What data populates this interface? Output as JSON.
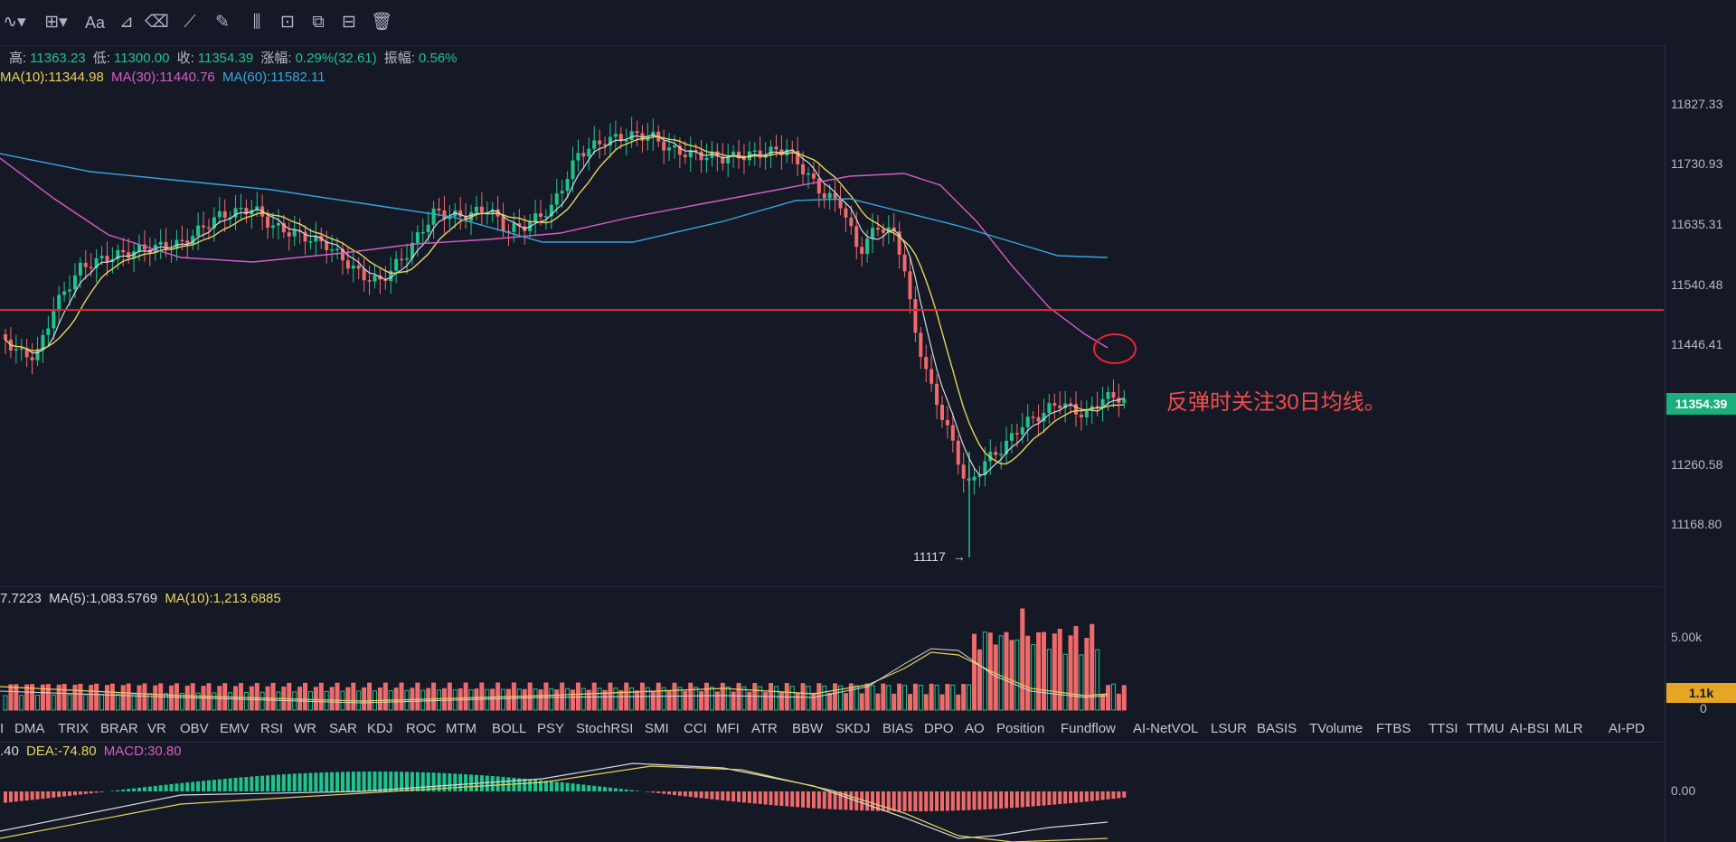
{
  "toolbar": {
    "icons": [
      "chart-style-icon",
      "crosshair-icon",
      "text-icon",
      "pattern-icon",
      "eraser-icon",
      "ruler-icon",
      "pencil-icon",
      "position-icon",
      "lock-icon",
      "copy-icon",
      "screenshot-icon",
      "trash-icon"
    ],
    "text_tool": "Aa"
  },
  "ohlc": {
    "high_label": "高:",
    "high": "11363.23",
    "low_label": "低:",
    "low": "11300.00",
    "close_label": "收:",
    "close": "11354.39",
    "change_label": "涨幅:",
    "change": "0.29%(32.61)",
    "amp_label": "振幅:",
    "amp": "0.56%"
  },
  "ma": {
    "ma10": "MA(10):11344.98",
    "ma30": "MA(30):11440.76",
    "ma60": "MA(60):11582.11"
  },
  "price_axis": [
    "11827.33",
    "11730.93",
    "11635.31",
    "11540.48",
    "11446.41",
    "11260.58",
    "11168.80"
  ],
  "current_price": "11354.39",
  "low_marker": "11117",
  "annotation": "反弹时关注30日均线。",
  "volume_info": {
    "first": "7.7223",
    "ma5": "MA(5):1,083.5769",
    "ma10": "MA(10):1,213.6885"
  },
  "volume_axis": {
    "top": "5.00k",
    "zero": "0",
    "current": "1.1k"
  },
  "indicator_tabs": [
    "I",
    "DMA",
    "TRIX",
    "BRAR",
    "VR",
    "OBV",
    "EMV",
    "RSI",
    "WR",
    "SAR",
    "KDJ",
    "ROC",
    "MTM",
    "BOLL",
    "PSY",
    "StochRSI",
    "SMI",
    "CCI",
    "MFI",
    "ATR",
    "BBW",
    "SKDJ",
    "BIAS",
    "DPO",
    "AO",
    "Position",
    "Fundflow",
    "AI-NetVOL",
    "LSUR",
    "BASIS",
    "TVolume",
    "FTBS",
    "TTSI",
    "TTMU",
    "AI-BSI",
    "MLR",
    "AI-PD"
  ],
  "macd_info": {
    "first": ".40",
    "dea": "DEA:-74.80",
    "macd": "MACD:30.80"
  },
  "macd_axis": "0.00",
  "colors": {
    "up": "#1fc48c",
    "down": "#ef6b6b",
    "ma10": "#e8d35a",
    "ma30": "#d95bc8",
    "ma60": "#37a6e0",
    "ma5": "#d6d8e0",
    "resistance": "#e8242e"
  }
}
